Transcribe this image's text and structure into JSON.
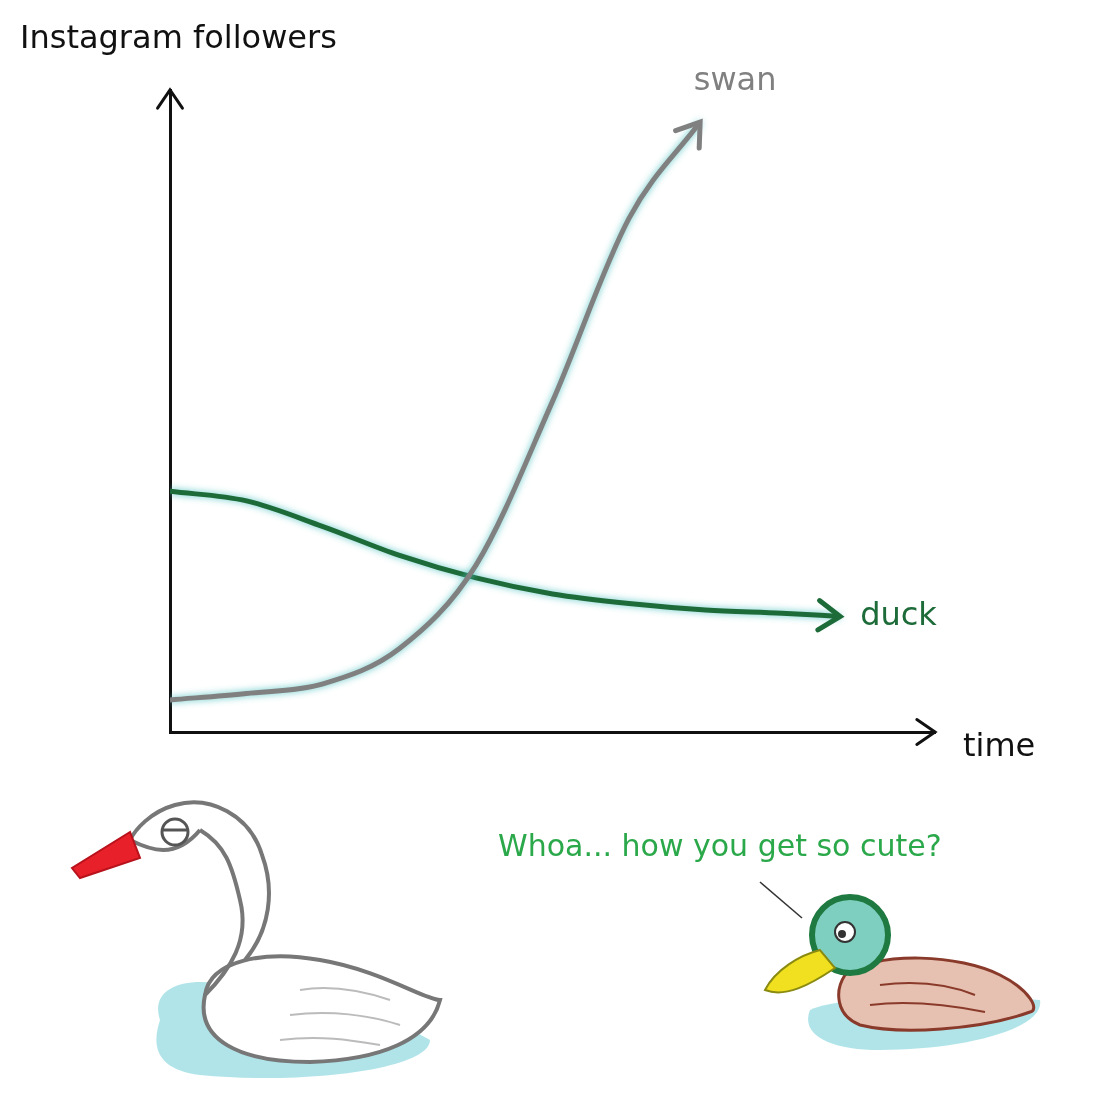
{
  "chart_data": {
    "type": "line",
    "y_label": "Instagram followers",
    "x_label": "time",
    "xlim": [
      0,
      10
    ],
    "ylim": [
      0,
      10
    ],
    "tick_labels": false,
    "grid": false,
    "series": [
      {
        "name": "swan",
        "color": "#808080",
        "x": [
          0,
          1,
          2,
          3,
          4,
          5,
          6,
          6.93
        ],
        "values": [
          0.5,
          0.6,
          0.75,
          1.3,
          2.6,
          5.15,
          8.0,
          9.5
        ]
      },
      {
        "name": "duck",
        "color": "#1e6b3a",
        "x": [
          0,
          1,
          2,
          3,
          4,
          5,
          6,
          7,
          8,
          8.76
        ],
        "values": [
          3.75,
          3.6,
          3.2,
          2.75,
          2.4,
          2.15,
          2.0,
          1.9,
          1.85,
          1.8
        ]
      }
    ],
    "annotation": "Whoa... how you get so cute?"
  }
}
